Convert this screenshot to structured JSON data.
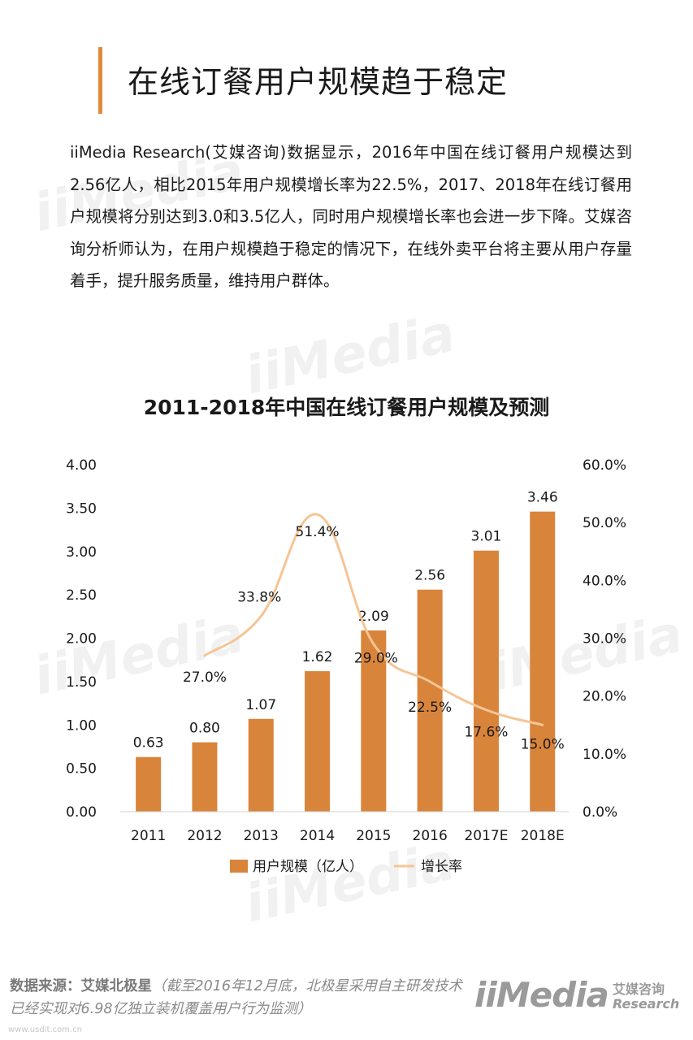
{
  "header": {
    "title": "在线订餐用户规模趋于稳定"
  },
  "intro": {
    "text": "iiMedia Research(艾媒咨询)数据显示，2016年中国在线订餐用户规模达到2.56亿人，相比2015年用户规模增长率为22.5%，2017、2018年在线订餐用户规模将分别达到3.0和3.5亿人，同时用户规模增长率也会进一步下降。艾媒咨询分析师认为，在用户规模趋于稳定的情况下，在线外卖平台将主要从用户存量着手，提升服务质量，维持用户群体。"
  },
  "chart_data": {
    "type": "bar",
    "title": "2011-2018年中国在线订餐用户规模及预测",
    "categories": [
      "2011",
      "2012",
      "2013",
      "2014",
      "2015",
      "2016",
      "2017E",
      "2018E"
    ],
    "series": [
      {
        "name": "用户规模（亿人）",
        "type": "bar",
        "axis": "left",
        "values": [
          0.63,
          0.8,
          1.07,
          1.62,
          2.09,
          2.56,
          3.01,
          3.46
        ],
        "labels": [
          "0.63",
          "0.80",
          "1.07",
          "1.62",
          "2.09",
          "2.56",
          "3.01",
          "3.46"
        ]
      },
      {
        "name": "增长率",
        "type": "line",
        "smooth": true,
        "axis": "right",
        "values": [
          null,
          27.0,
          33.8,
          51.4,
          29.0,
          22.5,
          17.6,
          15.0
        ],
        "labels": [
          "",
          "27.0%",
          "33.8%",
          "51.4%",
          "29.0%",
          "22.5%",
          "17.6%",
          "15.0%"
        ]
      }
    ],
    "ylim_left": [
      0,
      4
    ],
    "ylim_right": [
      0,
      60
    ],
    "yticks_left": [
      "0.00",
      "0.50",
      "1.00",
      "1.50",
      "2.00",
      "2.50",
      "3.00",
      "3.50",
      "4.00"
    ],
    "yticks_right": [
      "0.0%",
      "10.0%",
      "20.0%",
      "30.0%",
      "40.0%",
      "50.0%",
      "60.0%"
    ],
    "grid": false,
    "legend": "bottom",
    "colors": {
      "bar": "#d9843b",
      "line": "#f5c595",
      "text": "#1a1a1a"
    }
  },
  "footer": {
    "source_label": "数据来源：艾媒北极星",
    "source_note": "（截至2016年12月底，北极星采用自主研发技术已经实现对6.98亿独立装机覆盖用户行为监测）",
    "logo_main": "iiMedia",
    "logo_cn": "艾媒咨询",
    "logo_en": "Research",
    "url": "www.usdit.com.cn"
  },
  "watermarks": {
    "text": "iiMedia"
  }
}
